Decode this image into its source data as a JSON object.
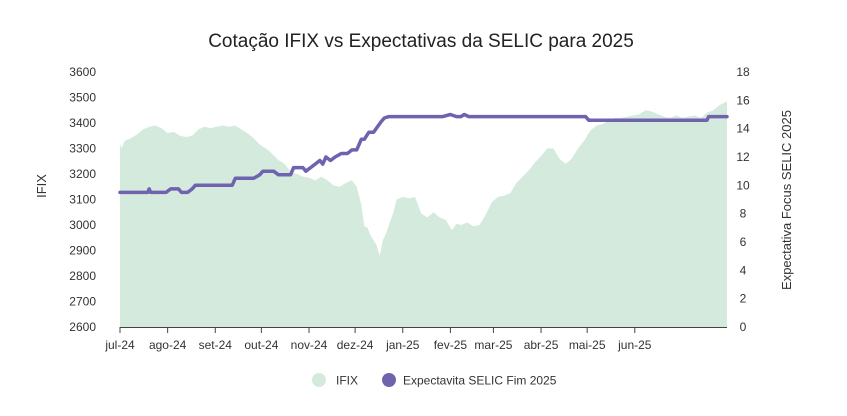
{
  "chart_data": {
    "type": "area+line",
    "title": "Cotação IFIX vs Expectativas da SELIC para 2025",
    "ylabel_left": "IFIX",
    "ylabel_right": "Expectativa Focus SELIC 2025",
    "ylim_left": [
      2600,
      3600
    ],
    "ylim_right": [
      0,
      18
    ],
    "yticks_left": [
      "2600",
      "2700",
      "2800",
      "2900",
      "3000",
      "3100",
      "3200",
      "3300",
      "3400",
      "3500",
      "3600"
    ],
    "yticks_right": [
      "0",
      "2",
      "4",
      "6",
      "8",
      "10",
      "12",
      "14",
      "16",
      "18"
    ],
    "xlim": [
      "2024-07-01",
      "2025-07-31"
    ],
    "xticks": [
      {
        "date": "2024-07-01",
        "label": "jul-24"
      },
      {
        "date": "2024-08-01",
        "label": "ago-24"
      },
      {
        "date": "2024-09-01",
        "label": "set-24"
      },
      {
        "date": "2024-10-01",
        "label": "out-24"
      },
      {
        "date": "2024-11-01",
        "label": "nov-24"
      },
      {
        "date": "2024-12-01",
        "label": "dez-24"
      },
      {
        "date": "2025-01-01",
        "label": "jan-25"
      },
      {
        "date": "2025-02-01",
        "label": "fev-25"
      },
      {
        "date": "2025-03-01",
        "label": "mar-25"
      },
      {
        "date": "2025-04-01",
        "label": "abr-25"
      },
      {
        "date": "2025-05-01",
        "label": "mai-25"
      },
      {
        "date": "2025-06-01",
        "label": "jun-25"
      }
    ],
    "legend_position": "bottom-center",
    "grid": false,
    "series": [
      {
        "name": "IFIX",
        "kind": "area",
        "axis": "left",
        "color": "#d4eadc",
        "points": [
          [
            "2024-07-01",
            3320
          ],
          [
            "2024-07-02",
            3300
          ],
          [
            "2024-07-04",
            3330
          ],
          [
            "2024-07-08",
            3340
          ],
          [
            "2024-07-12",
            3355
          ],
          [
            "2024-07-16",
            3375
          ],
          [
            "2024-07-20",
            3385
          ],
          [
            "2024-07-24",
            3390
          ],
          [
            "2024-07-28",
            3380
          ],
          [
            "2024-08-01",
            3360
          ],
          [
            "2024-08-05",
            3365
          ],
          [
            "2024-08-09",
            3350
          ],
          [
            "2024-08-13",
            3345
          ],
          [
            "2024-08-17",
            3350
          ],
          [
            "2024-08-21",
            3375
          ],
          [
            "2024-08-25",
            3385
          ],
          [
            "2024-08-29",
            3380
          ],
          [
            "2024-09-02",
            3385
          ],
          [
            "2024-09-06",
            3390
          ],
          [
            "2024-09-10",
            3385
          ],
          [
            "2024-09-14",
            3390
          ],
          [
            "2024-09-18",
            3375
          ],
          [
            "2024-09-22",
            3360
          ],
          [
            "2024-09-26",
            3340
          ],
          [
            "2024-09-30",
            3315
          ],
          [
            "2024-10-04",
            3300
          ],
          [
            "2024-10-08",
            3280
          ],
          [
            "2024-10-12",
            3255
          ],
          [
            "2024-10-16",
            3240
          ],
          [
            "2024-10-20",
            3210
          ],
          [
            "2024-10-24",
            3200
          ],
          [
            "2024-10-28",
            3190
          ],
          [
            "2024-11-01",
            3185
          ],
          [
            "2024-11-05",
            3175
          ],
          [
            "2024-11-09",
            3190
          ],
          [
            "2024-11-13",
            3175
          ],
          [
            "2024-11-17",
            3155
          ],
          [
            "2024-11-21",
            3150
          ],
          [
            "2024-11-25",
            3165
          ],
          [
            "2024-11-29",
            3175
          ],
          [
            "2024-12-02",
            3150
          ],
          [
            "2024-12-05",
            3080
          ],
          [
            "2024-12-07",
            2995
          ],
          [
            "2024-12-09",
            2990
          ],
          [
            "2024-12-11",
            2960
          ],
          [
            "2024-12-13",
            2940
          ],
          [
            "2024-12-15",
            2920
          ],
          [
            "2024-12-17",
            2880
          ],
          [
            "2024-12-19",
            2940
          ],
          [
            "2024-12-21",
            2965
          ],
          [
            "2024-12-23",
            3000
          ],
          [
            "2024-12-26",
            3050
          ],
          [
            "2024-12-28",
            3100
          ],
          [
            "2025-01-01",
            3110
          ],
          [
            "2025-01-05",
            3105
          ],
          [
            "2025-01-09",
            3110
          ],
          [
            "2025-01-13",
            3045
          ],
          [
            "2025-01-17",
            3030
          ],
          [
            "2025-01-21",
            3050
          ],
          [
            "2025-01-25",
            3030
          ],
          [
            "2025-01-29",
            3020
          ],
          [
            "2025-02-02",
            2980
          ],
          [
            "2025-02-05",
            3005
          ],
          [
            "2025-02-08",
            3000
          ],
          [
            "2025-02-12",
            3010
          ],
          [
            "2025-02-16",
            2995
          ],
          [
            "2025-02-20",
            3000
          ],
          [
            "2025-02-24",
            3040
          ],
          [
            "2025-02-28",
            3090
          ],
          [
            "2025-03-04",
            3110
          ],
          [
            "2025-03-08",
            3115
          ],
          [
            "2025-03-12",
            3125
          ],
          [
            "2025-03-16",
            3165
          ],
          [
            "2025-03-20",
            3190
          ],
          [
            "2025-03-24",
            3215
          ],
          [
            "2025-03-28",
            3245
          ],
          [
            "2025-04-01",
            3270
          ],
          [
            "2025-04-05",
            3300
          ],
          [
            "2025-04-09",
            3300
          ],
          [
            "2025-04-13",
            3260
          ],
          [
            "2025-04-17",
            3240
          ],
          [
            "2025-04-21",
            3260
          ],
          [
            "2025-04-25",
            3300
          ],
          [
            "2025-04-29",
            3330
          ],
          [
            "2025-05-03",
            3370
          ],
          [
            "2025-05-07",
            3390
          ],
          [
            "2025-05-11",
            3395
          ],
          [
            "2025-05-15",
            3410
          ],
          [
            "2025-05-19",
            3420
          ],
          [
            "2025-05-23",
            3420
          ],
          [
            "2025-05-27",
            3425
          ],
          [
            "2025-05-31",
            3430
          ],
          [
            "2025-06-04",
            3435
          ],
          [
            "2025-06-08",
            3450
          ],
          [
            "2025-06-12",
            3445
          ],
          [
            "2025-06-16",
            3435
          ],
          [
            "2025-06-20",
            3425
          ],
          [
            "2025-06-24",
            3420
          ],
          [
            "2025-06-28",
            3430
          ],
          [
            "2025-07-02",
            3420
          ],
          [
            "2025-07-06",
            3425
          ],
          [
            "2025-07-10",
            3430
          ],
          [
            "2025-07-14",
            3420
          ],
          [
            "2025-07-18",
            3440
          ],
          [
            "2025-07-22",
            3450
          ],
          [
            "2025-07-26",
            3470
          ],
          [
            "2025-07-31",
            3485
          ]
        ]
      },
      {
        "name": "Expectavita SELIC Fim 2025",
        "kind": "line",
        "axis": "right",
        "color": "#6f63b0",
        "points": [
          [
            "2024-07-01",
            9.5
          ],
          [
            "2024-07-19",
            9.5
          ],
          [
            "2024-07-20",
            9.75
          ],
          [
            "2024-07-21",
            9.5
          ],
          [
            "2024-07-31",
            9.5
          ],
          [
            "2024-08-03",
            9.75
          ],
          [
            "2024-08-08",
            9.75
          ],
          [
            "2024-08-10",
            9.5
          ],
          [
            "2024-08-14",
            9.5
          ],
          [
            "2024-08-17",
            9.75
          ],
          [
            "2024-08-19",
            10.0
          ],
          [
            "2024-09-12",
            10.0
          ],
          [
            "2024-09-14",
            10.5
          ],
          [
            "2024-09-26",
            10.5
          ],
          [
            "2024-09-30",
            10.75
          ],
          [
            "2024-10-02",
            11.0
          ],
          [
            "2024-10-09",
            11.0
          ],
          [
            "2024-10-12",
            10.75
          ],
          [
            "2024-10-20",
            10.75
          ],
          [
            "2024-10-22",
            11.25
          ],
          [
            "2024-10-28",
            11.25
          ],
          [
            "2024-10-30",
            11.0
          ],
          [
            "2024-11-02",
            11.25
          ],
          [
            "2024-11-05",
            11.5
          ],
          [
            "2024-11-08",
            11.75
          ],
          [
            "2024-11-10",
            11.5
          ],
          [
            "2024-11-12",
            12.0
          ],
          [
            "2024-11-15",
            11.75
          ],
          [
            "2024-11-18",
            12.0
          ],
          [
            "2024-11-22",
            12.25
          ],
          [
            "2024-11-26",
            12.25
          ],
          [
            "2024-11-29",
            12.5
          ],
          [
            "2024-12-02",
            12.5
          ],
          [
            "2024-12-05",
            13.25
          ],
          [
            "2024-12-07",
            13.25
          ],
          [
            "2024-12-10",
            13.75
          ],
          [
            "2024-12-13",
            13.75
          ],
          [
            "2024-12-18",
            14.5
          ],
          [
            "2024-12-20",
            14.75
          ],
          [
            "2024-12-23",
            14.85
          ],
          [
            "2025-01-06",
            14.85
          ],
          [
            "2025-01-27",
            14.85
          ],
          [
            "2025-02-01",
            15.0
          ],
          [
            "2025-02-05",
            14.85
          ],
          [
            "2025-02-08",
            14.85
          ],
          [
            "2025-02-10",
            15.0
          ],
          [
            "2025-02-13",
            14.85
          ],
          [
            "2025-04-30",
            14.85
          ],
          [
            "2025-05-02",
            14.6
          ],
          [
            "2025-07-10",
            14.6
          ],
          [
            "2025-07-18",
            14.6
          ],
          [
            "2025-07-19",
            14.85
          ],
          [
            "2025-07-31",
            14.85
          ]
        ]
      }
    ]
  }
}
